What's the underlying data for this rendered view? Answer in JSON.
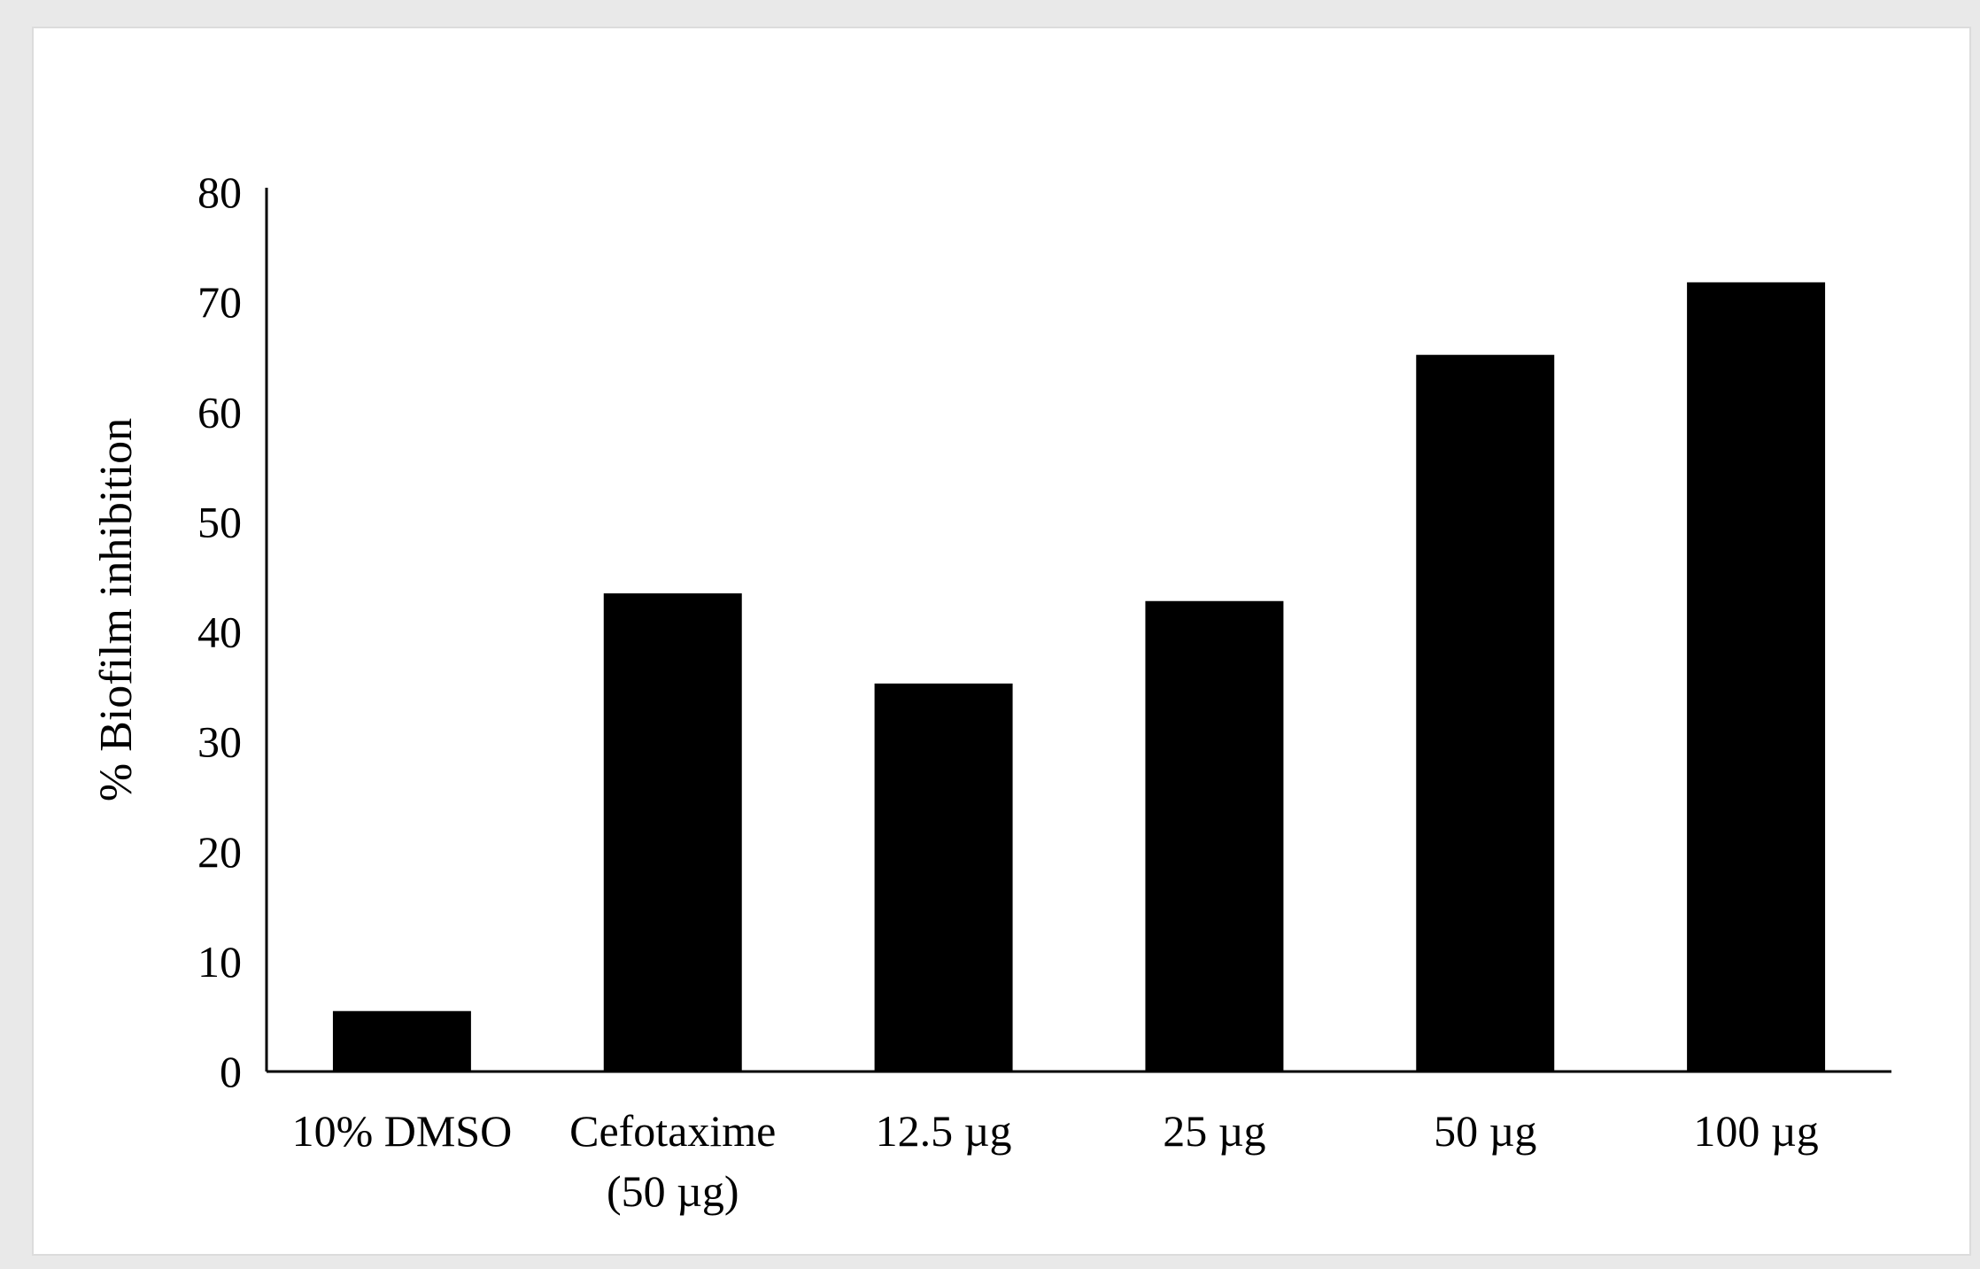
{
  "chart_data": {
    "type": "bar",
    "title": "",
    "xlabel": "",
    "ylabel": "% Biofilm inhibition",
    "ylim": [
      0,
      80
    ],
    "yticks": [
      0,
      10,
      20,
      30,
      40,
      50,
      60,
      70,
      80
    ],
    "grid": false,
    "legend": "none",
    "bar_color": "#000000",
    "categories": [
      [
        "10% DMSO"
      ],
      [
        "Cefotaxime",
        "(50 µg)"
      ],
      [
        "12.5 µg"
      ],
      [
        "25 µg"
      ],
      [
        "50 µg"
      ],
      [
        "100 µg"
      ]
    ],
    "values": [
      5.5,
      43.5,
      35.3,
      42.8,
      65.2,
      71.8
    ]
  }
}
